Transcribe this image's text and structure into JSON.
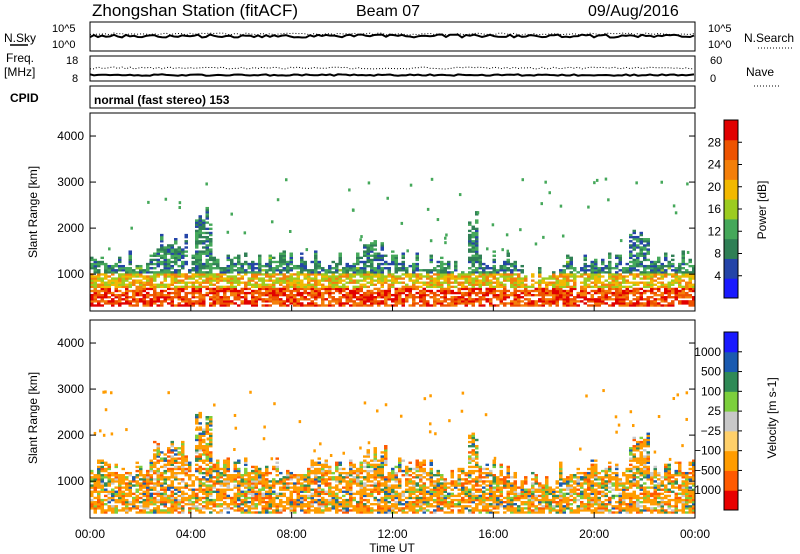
{
  "header": {
    "station": "Zhongshan Station (fitACF)",
    "beam": "Beam 07",
    "date": "09/Aug/2016"
  },
  "panels": {
    "nsky": {
      "label": "N.Sky",
      "ticks": [
        "10^5",
        "10^0"
      ],
      "right_label": "N.Search",
      "right_ticks": [
        "10^5",
        "10^0"
      ]
    },
    "freq": {
      "label_line1": "Freq.",
      "label_line2": "[MHz]",
      "ticks": [
        "18",
        "8"
      ],
      "right_label": "Nave",
      "right_ticks": [
        "60",
        "0"
      ]
    },
    "cpid": {
      "label": "CPID",
      "mode": "normal (fast stereo) 153"
    }
  },
  "colors": {
    "power": [
      "#1a1aff",
      "#2444a8",
      "#2f7f55",
      "#45a85a",
      "#9ccc20",
      "#f2b800",
      "#f47f0a",
      "#ee5300",
      "#e10000"
    ],
    "velocity": [
      "#e80000",
      "#ff5a00",
      "#ff9c00",
      "#ffd06a",
      "#c8c8c8",
      "#7ccf3c",
      "#2f8a56",
      "#1a5ab0",
      "#1a1aff"
    ]
  },
  "chart_data": [
    {
      "type": "heatmap",
      "name": "power",
      "ylabel": "Slant Range [km]",
      "yticks": [
        "1000",
        "2000",
        "3000",
        "4000"
      ],
      "ylim": [
        200,
        4500
      ],
      "xlim": [
        "00:00",
        "00:00"
      ],
      "colorbar_label": "Power [dB]",
      "colorbar_ticks": [
        "4",
        "8",
        "12",
        "16",
        "20",
        "24",
        "28"
      ],
      "colorbar_range": [
        0,
        32
      ]
    },
    {
      "type": "heatmap",
      "name": "velocity",
      "ylabel": "Slant Range [km]",
      "yticks": [
        "1000",
        "2000",
        "3000",
        "4000"
      ],
      "ylim": [
        200,
        4500
      ],
      "xticks": [
        "00:00",
        "04:00",
        "08:00",
        "12:00",
        "16:00",
        "20:00",
        "00:00"
      ],
      "xlabel": "Time UT",
      "colorbar_label": "Velocity [m s-1]",
      "colorbar_ticks": [
        "1000",
        "500",
        "100",
        "25",
        "−25",
        "−100",
        "−500",
        "−1000"
      ]
    }
  ]
}
